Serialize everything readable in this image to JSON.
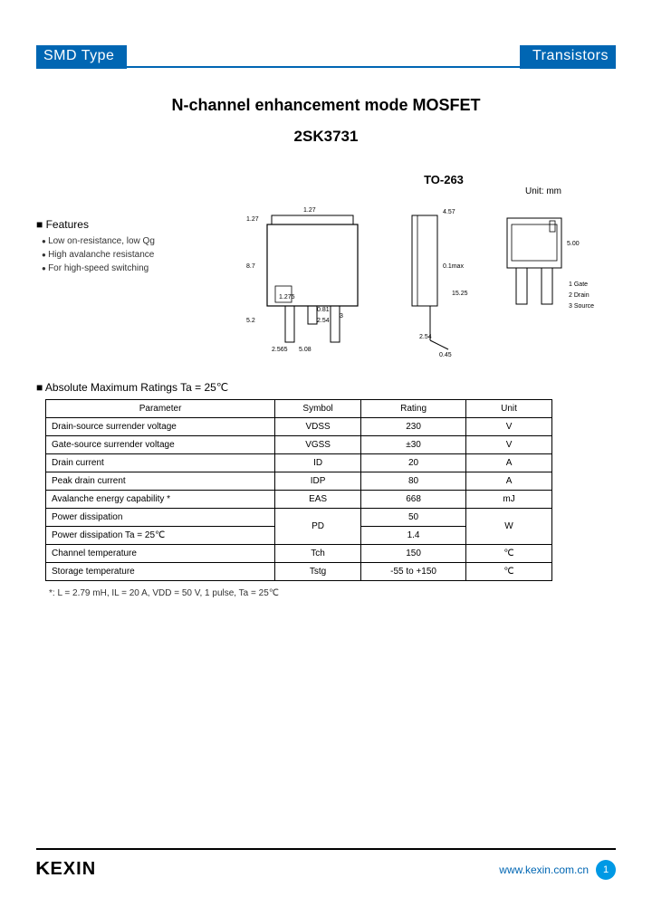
{
  "header": {
    "left": "SMD Type",
    "right": "Transistors",
    "bar_color": "#0066b3"
  },
  "title": {
    "line1": "N-channel enhancement mode MOSFET",
    "line2": "2SK3731"
  },
  "package": {
    "name": "TO-263",
    "unit_label": "Unit: mm",
    "pins": [
      {
        "num": "1",
        "label": "Gate"
      },
      {
        "num": "2",
        "label": "Drain"
      },
      {
        "num": "3",
        "label": "Source"
      }
    ],
    "dims": {
      "top_h": "1.27",
      "top_w": "1.27",
      "body_h": "8.7",
      "body_w": "5.2",
      "inner": "1.275",
      "lead": "2.54",
      "lead_gap": "5.08",
      "lead_h": "2.565",
      "thick": "0.81",
      "pitch": "2.54",
      "tab_w": "4.57",
      "side_h": "15.25",
      "side_t": "5.00",
      "tab_t": "0.1max",
      "foot": "0.45"
    }
  },
  "features": {
    "heading": "Features",
    "items": [
      "Low on-resistance, low Qg",
      "High avalanche resistance",
      "For high-speed switching"
    ]
  },
  "ratings": {
    "heading": "Absolute Maximum Ratings Ta = 25℃",
    "columns": [
      "Parameter",
      "Symbol",
      "Rating",
      "Unit"
    ],
    "rows": [
      {
        "param": "Drain-source surrender voltage",
        "symbol": "VDSS",
        "rating": "230",
        "unit": "V"
      },
      {
        "param": "Gate-source surrender voltage",
        "symbol": "VGSS",
        "rating": "±30",
        "unit": "V"
      },
      {
        "param": "Drain current",
        "symbol": "ID",
        "rating": "20",
        "unit": "A"
      },
      {
        "param": "Peak drain current",
        "symbol": "IDP",
        "rating": "80",
        "unit": "A"
      },
      {
        "param": "Avalanche energy capability *",
        "symbol": "EAS",
        "rating": "668",
        "unit": "mJ"
      },
      {
        "param": "Power dissipation",
        "symbol": "PD",
        "rating": "50",
        "unit": "W",
        "merge_symbol": 2,
        "merge_unit": 2
      },
      {
        "param": "Power dissipation   Ta = 25℃",
        "rating": "1.4"
      },
      {
        "param": "Channel temperature",
        "symbol": "Tch",
        "rating": "150",
        "unit": "℃"
      },
      {
        "param": "Storage temperature",
        "symbol": "Tstg",
        "rating": "-55 to +150",
        "unit": "℃"
      }
    ],
    "footnote": "*: L = 2.79 mH, IL = 20 A, VDD = 50 V, 1 pulse, Ta = 25℃"
  },
  "footer": {
    "brand": "KEXIN",
    "url": "www.kexin.com.cn",
    "page": "1",
    "badge_color": "#0099e5"
  }
}
